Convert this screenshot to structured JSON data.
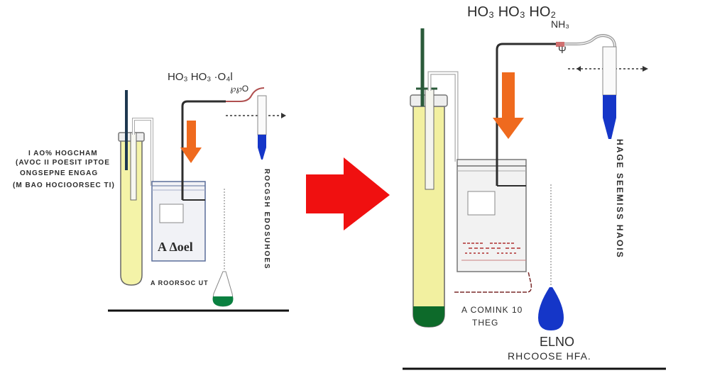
{
  "colors": {
    "arrow_red": "#f01010",
    "arrow_orange": "#ef6a1e",
    "tube_yellow": "#f2f0a0",
    "liquid_blue": "#1536c8",
    "liquid_green": "#0a8040",
    "pipe_dark": "#2e2e2e",
    "pipe_grey": "#aaaaaa"
  },
  "left_panel": {
    "description_lines": [
      "I AO% HOGCHAM",
      "(AVOC II POESIT IPTOE",
      "ONGSEPNE ENGAG",
      "(M BAO HOCIOORSEC TI)"
    ],
    "formula": "HO₃  HO₃  ·O₄l",
    "formula_sub": "℘℘O",
    "beaker_label": "A  Δoel",
    "flask_label": "A ROORSOC UT",
    "vertical_label": "ROCGSH EDOSUHOES"
  },
  "right_panel": {
    "formula": "HO₃   HO₃   HO₂",
    "formula_sub": "NH₃",
    "valve_symbol": "Ψ",
    "beaker_caption_1": "A COMINK 10",
    "beaker_caption_2": "THEG",
    "flask_label_1": "ELNO",
    "flask_label_2": "RHCOOSE HFA.",
    "vertical_label": "HAGE SEEMISS HAOIS"
  }
}
